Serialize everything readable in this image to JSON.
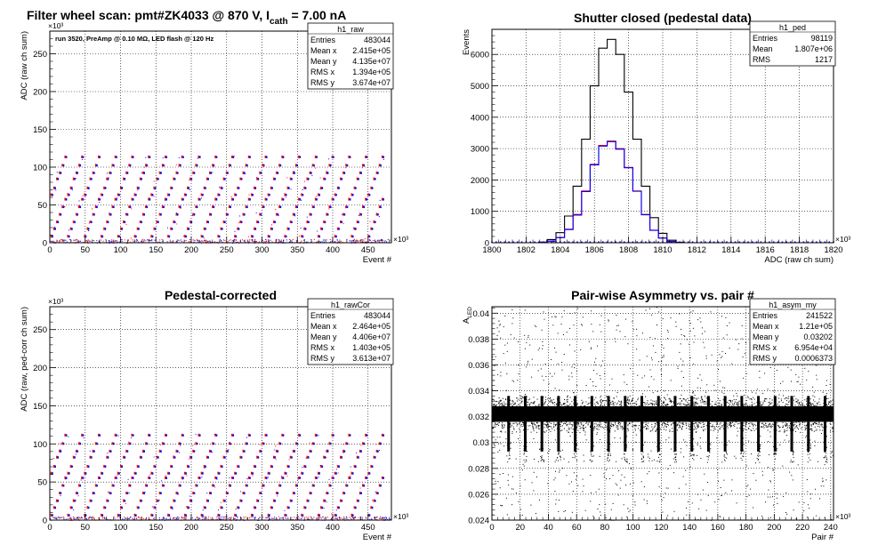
{
  "main_title": {
    "prefix": "Filter wheel scan: pmt#ZK4033 @   870 V, I",
    "subscript": "cath",
    "suffix": " = 7.00 nA"
  },
  "chart_data": [
    {
      "id": "raw",
      "type": "scatter",
      "title": "",
      "xlabel": "Event #",
      "ylabel": "ADC (raw ch sum)",
      "x_multiplier": "×10³",
      "y_multiplier": "×10³",
      "xlim": [
        0,
        483
      ],
      "ylim": [
        0,
        280
      ],
      "xticks": [
        0,
        50,
        100,
        150,
        200,
        250,
        300,
        350,
        400,
        450
      ],
      "yticks": [
        0,
        50,
        100,
        150,
        200,
        250
      ],
      "grid": true,
      "annotation": "run 3520, PreAmp @ 0.10 MΩ, LED flash @  120 Hz",
      "stats": {
        "name": "h1_raw",
        "rows": [
          [
            "Entries",
            "483044"
          ],
          [
            "Mean x",
            "2.415e+05"
          ],
          [
            "Mean y",
            "4.135e+07"
          ],
          [
            "RMS x",
            "1.394e+05"
          ],
          [
            "RMS y",
            "3.674e+07"
          ]
        ]
      },
      "levels": [
        8,
        18,
        27,
        37,
        47,
        57,
        63,
        72,
        84,
        92,
        102,
        113
      ],
      "period": 23.6,
      "series": [
        {
          "name": "",
          "color": "#ff0000"
        },
        {
          "name": "",
          "color": "#0000ff"
        }
      ]
    },
    {
      "id": "ped",
      "type": "line",
      "title": "Shutter closed (pedestal data)",
      "xlabel": "ADC (raw ch sum)",
      "ylabel": "Events",
      "x_multiplier": "×10³",
      "xlim": [
        1800,
        1820
      ],
      "ylim": [
        0,
        6800
      ],
      "xticks": [
        1800,
        1802,
        1804,
        1806,
        1808,
        1810,
        1812,
        1814,
        1816,
        1818,
        1820
      ],
      "yticks": [
        0,
        1000,
        2000,
        3000,
        4000,
        5000,
        6000
      ],
      "grid": true,
      "stats": {
        "name": "h1_ped",
        "rows": [
          [
            "Entries",
            "98119"
          ],
          [
            "Mean",
            "1.807e+06"
          ],
          [
            "RMS",
            "1217"
          ]
        ]
      },
      "x": [
        1803,
        1803.5,
        1804,
        1804.5,
        1805,
        1805.5,
        1806,
        1806.5,
        1807,
        1807.5,
        1808,
        1808.5,
        1809,
        1809.5,
        1810,
        1810.5,
        1811
      ],
      "series": [
        {
          "name": "",
          "color": "#000000",
          "values": [
            20,
            100,
            320,
            850,
            1800,
            3300,
            5000,
            6200,
            6480,
            6000,
            4800,
            3300,
            1800,
            800,
            300,
            80,
            15
          ]
        },
        {
          "name": "",
          "color": "#ff0000",
          "values": [
            10,
            50,
            170,
            430,
            900,
            1650,
            2500,
            3100,
            3240,
            3000,
            2400,
            1650,
            900,
            400,
            150,
            40,
            8
          ]
        },
        {
          "name": "",
          "color": "#0000ff",
          "values": [
            10,
            50,
            160,
            420,
            880,
            1630,
            2480,
            3080,
            3220,
            2980,
            2390,
            1640,
            890,
            395,
            148,
            38,
            7
          ]
        }
      ]
    },
    {
      "id": "rawCor",
      "type": "scatter",
      "title": "Pedestal-corrected",
      "xlabel": "Event #",
      "ylabel": "ADC (raw, ped-corr ch sum)",
      "x_multiplier": "×10³",
      "y_multiplier": "×10³",
      "xlim": [
        0,
        483
      ],
      "ylim": [
        0,
        280
      ],
      "xticks": [
        0,
        50,
        100,
        150,
        200,
        250,
        300,
        350,
        400,
        450
      ],
      "yticks": [
        0,
        50,
        100,
        150,
        200,
        250
      ],
      "grid": true,
      "stats": {
        "name": "h1_rawCor",
        "rows": [
          [
            "Entries",
            "483044"
          ],
          [
            "Mean x",
            "2.464e+05"
          ],
          [
            "Mean y",
            "4.406e+07"
          ],
          [
            "RMS x",
            "1.403e+05"
          ],
          [
            "RMS y",
            "3.613e+07"
          ]
        ]
      },
      "levels": [
        6,
        16,
        25,
        35,
        45,
        55,
        61,
        70,
        82,
        90,
        100,
        111
      ],
      "period": 23.6,
      "series": [
        {
          "name": "",
          "color": "#ff0000"
        },
        {
          "name": "",
          "color": "#0000ff"
        }
      ]
    },
    {
      "id": "asym",
      "type": "scatter",
      "title": "Pair-wise Asymmetry vs. pair #",
      "xlabel": "Pair #",
      "ylabel": "A",
      "ylabel_sub": "LED",
      "x_multiplier": "×10³",
      "xlim": [
        0,
        242
      ],
      "ylim": [
        0.024,
        0.0405
      ],
      "xticks": [
        0,
        20,
        40,
        60,
        80,
        100,
        120,
        140,
        160,
        180,
        200,
        220,
        240
      ],
      "yticks": [
        0.024,
        0.026,
        0.028,
        0.03,
        0.032,
        0.034,
        0.036,
        0.038,
        0.04
      ],
      "ytick_labels": [
        "0.024",
        "0.026",
        "0.028",
        "0.03",
        "0.032",
        "0.034",
        "0.036",
        "0.038",
        "0.04"
      ],
      "grid": true,
      "stats": {
        "name": "h1_asym_my",
        "rows": [
          [
            "Entries",
            "241522"
          ],
          [
            "Mean x",
            "1.21e+05"
          ],
          [
            "Mean y",
            "0.03202"
          ],
          [
            "RMS x",
            "6.954e+04"
          ],
          [
            "RMS y",
            "0.0006373"
          ]
        ]
      },
      "band_center": 0.0322,
      "band_halfwidth": 0.0006,
      "spike_period": 11.8,
      "series": [
        {
          "name": "",
          "color": "#000000"
        }
      ]
    }
  ]
}
